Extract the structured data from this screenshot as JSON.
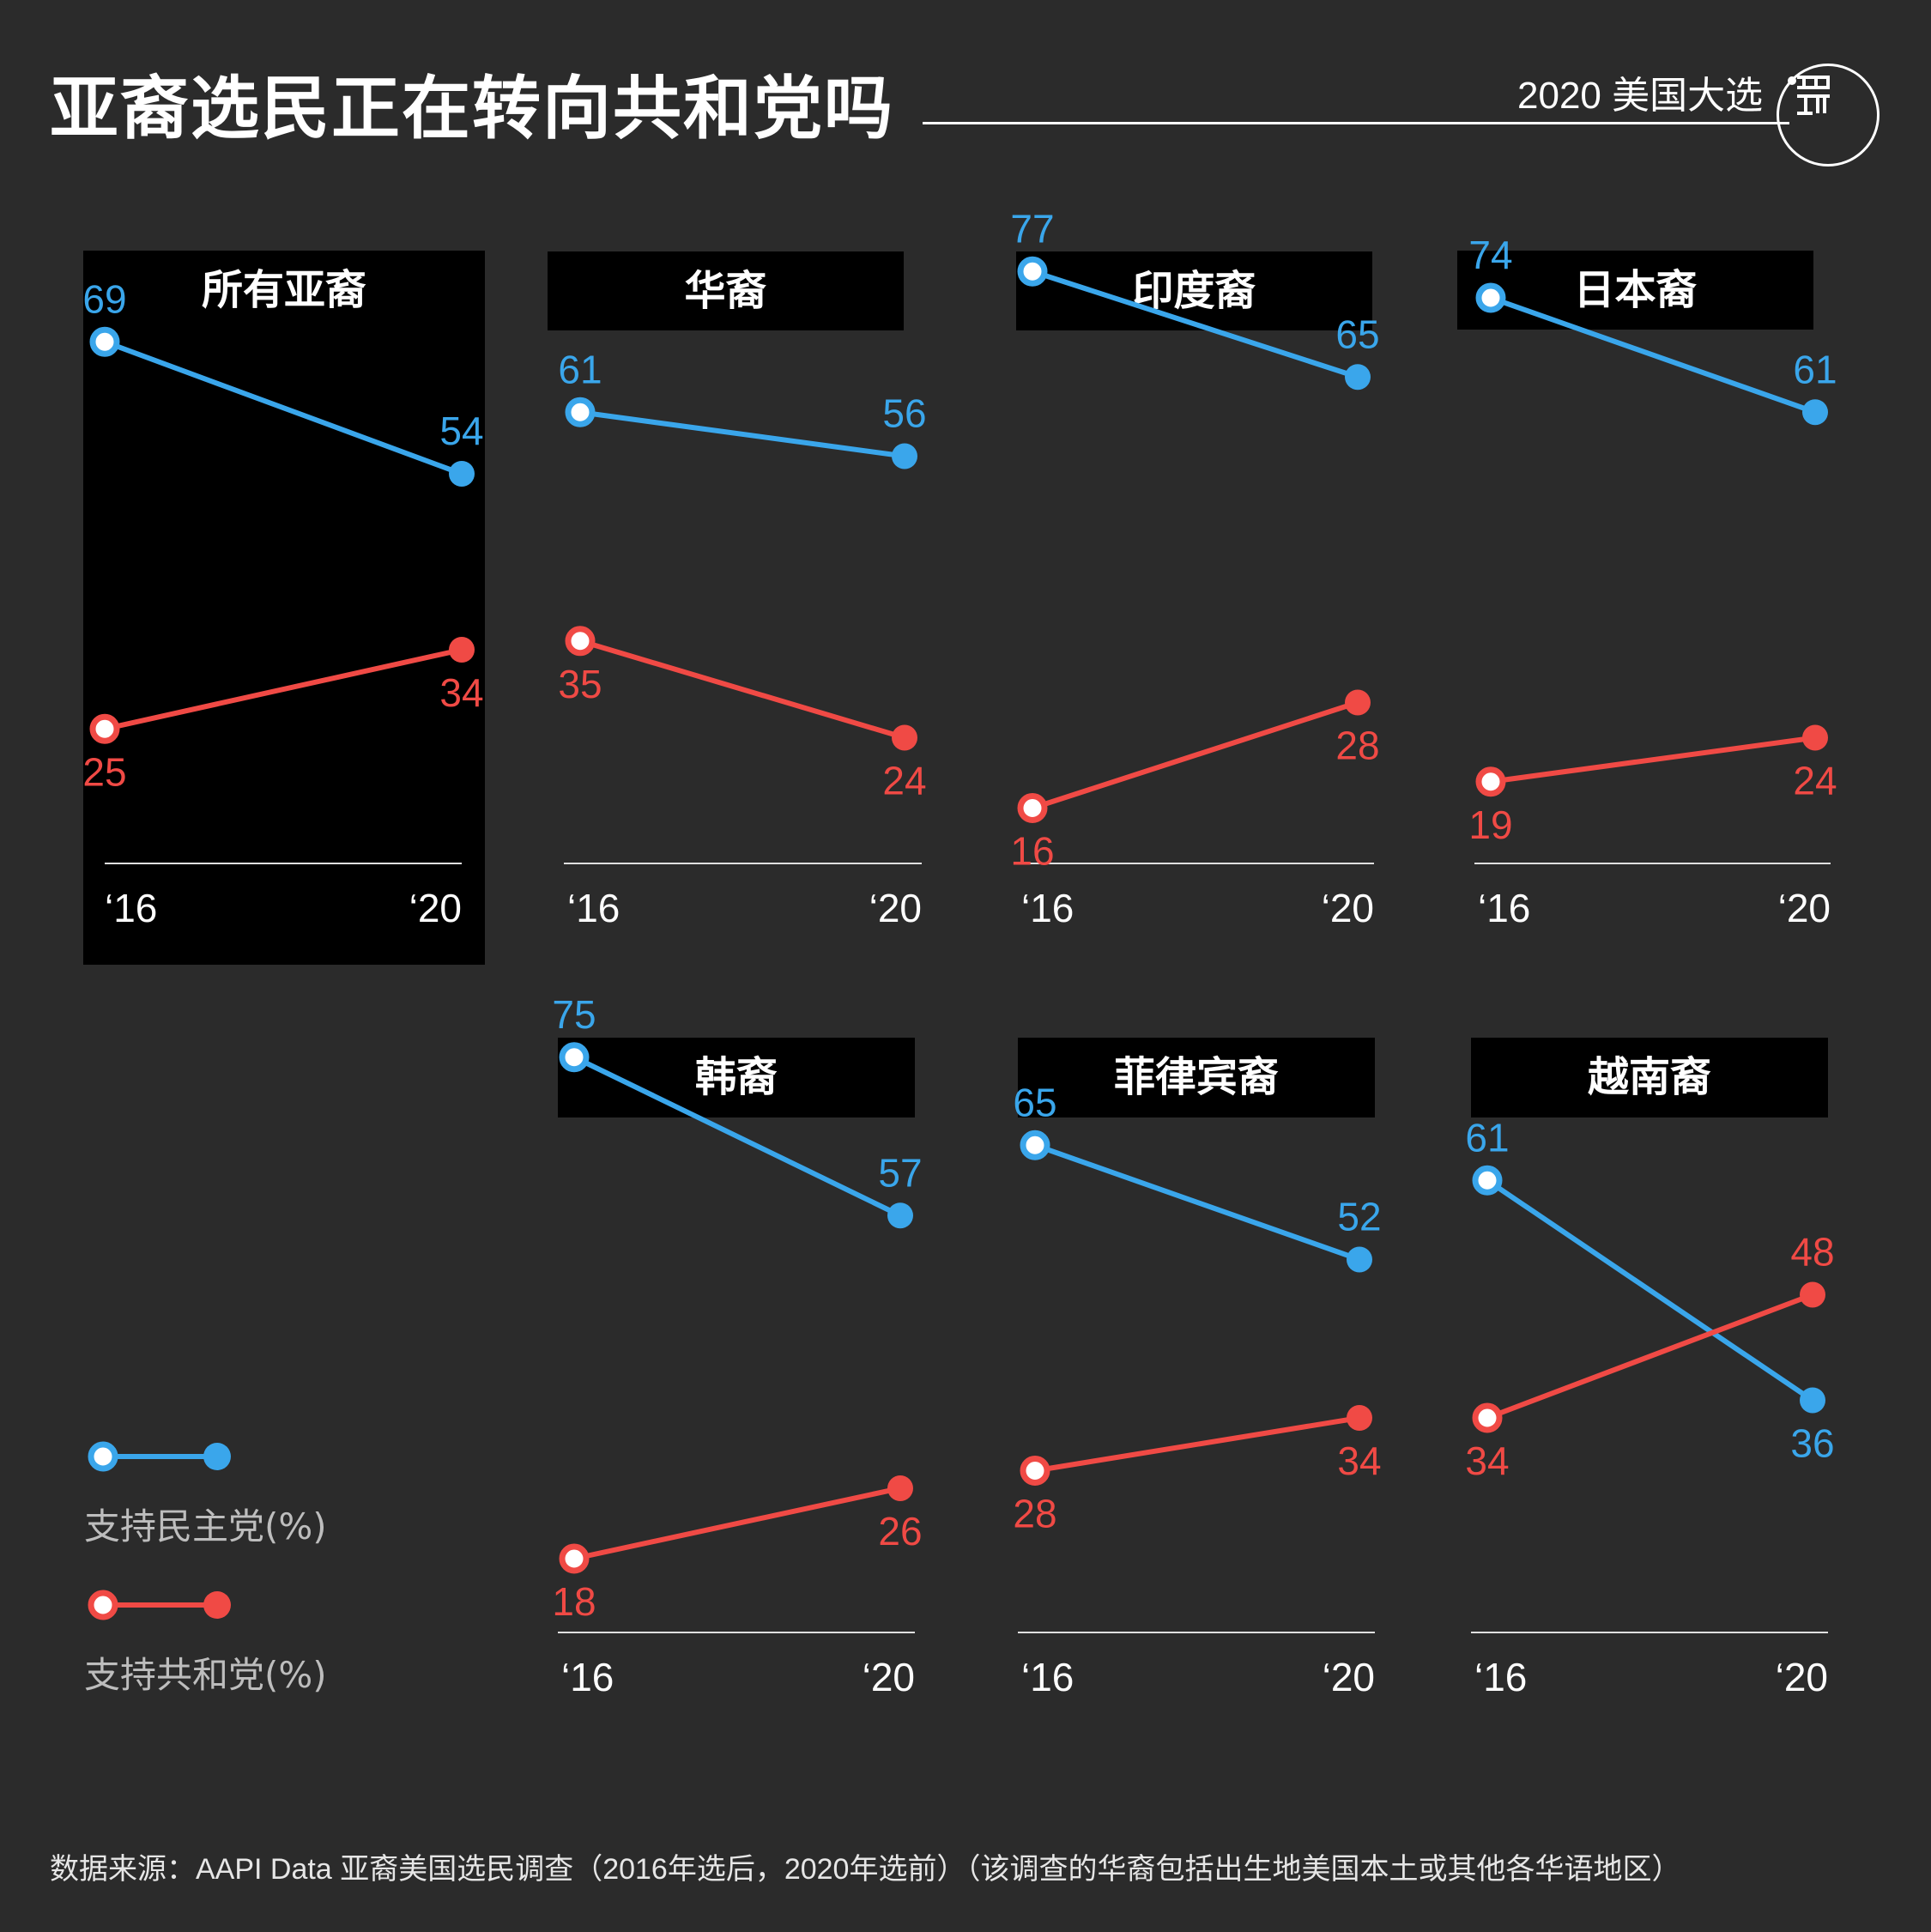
{
  "header": {
    "title": "亚裔选民正在转向共和党吗",
    "series_tag": "2020 美国大选"
  },
  "colors": {
    "democrat": "#3aa6eb",
    "republican": "#f04a45",
    "background": "#2b2b2b",
    "highlight_panel": "#000000"
  },
  "legend": {
    "democrat_label": "支持民主党(%)",
    "republican_label": "支持共和党(%)"
  },
  "source": "数据来源：AAPI Data 亚裔美国选民调查（2016年选后，2020年选前）（该调查的华裔包括出生地美国本土或其他各华语地区）",
  "chart_data": {
    "type": "line",
    "x": [
      "‘16",
      "‘20"
    ],
    "panels": [
      {
        "title": "所有亚裔",
        "series": [
          {
            "name": "支持民主党(%)",
            "values": [
              69,
              54
            ]
          },
          {
            "name": "支持共和党(%)",
            "values": [
              25,
              34
            ]
          }
        ]
      },
      {
        "title": "华裔",
        "series": [
          {
            "name": "支持民主党(%)",
            "values": [
              61,
              56
            ]
          },
          {
            "name": "支持共和党(%)",
            "values": [
              35,
              24
            ]
          }
        ]
      },
      {
        "title": "印度裔",
        "series": [
          {
            "name": "支持民主党(%)",
            "values": [
              77,
              65
            ]
          },
          {
            "name": "支持共和党(%)",
            "values": [
              16,
              28
            ]
          }
        ]
      },
      {
        "title": "日本裔",
        "series": [
          {
            "name": "支持民主党(%)",
            "values": [
              74,
              61
            ]
          },
          {
            "name": "支持共和党(%)",
            "values": [
              19,
              24
            ]
          }
        ]
      },
      {
        "title": "韩裔",
        "series": [
          {
            "name": "支持民主党(%)",
            "values": [
              75,
              57
            ]
          },
          {
            "name": "支持共和党(%)",
            "values": [
              18,
              26
            ]
          }
        ]
      },
      {
        "title": "菲律宾裔",
        "series": [
          {
            "name": "支持民主党(%)",
            "values": [
              65,
              52
            ]
          },
          {
            "name": "支持共和党(%)",
            "values": [
              28,
              34
            ]
          }
        ]
      },
      {
        "title": "越南裔",
        "series": [
          {
            "name": "支持民主党(%)",
            "values": [
              61,
              36
            ]
          },
          {
            "name": "支持共和党(%)",
            "values": [
              34,
              48
            ]
          }
        ]
      }
    ]
  }
}
